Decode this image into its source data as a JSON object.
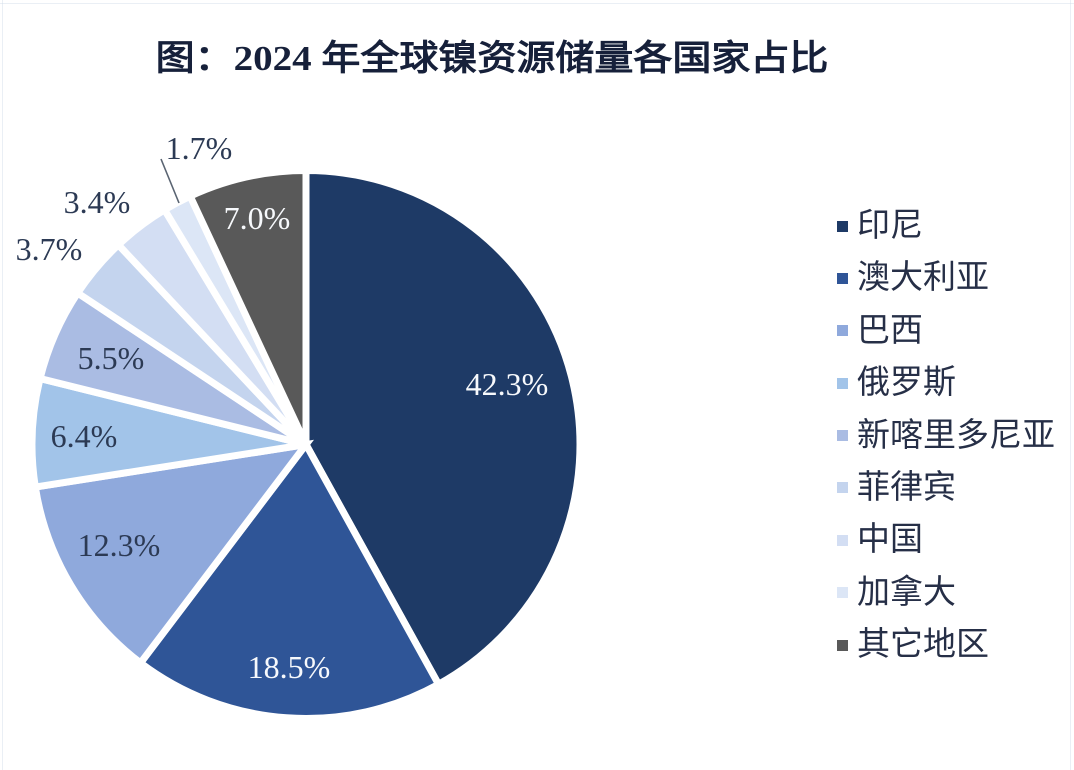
{
  "figure": {
    "background_color": "#ffffff"
  },
  "chart_data": {
    "type": "pie",
    "title": "图：2024 年全球镍资源储量各国家占比",
    "unit": "percent",
    "direction": "clockwise",
    "start_angle_deg": 0,
    "legend_position": "right",
    "categories": [
      "印尼",
      "澳大利亚",
      "巴西",
      "俄罗斯",
      "新喀里多尼亚",
      "菲律宾",
      "中国",
      "加拿大",
      "其它地区"
    ],
    "values": [
      42.3,
      18.5,
      12.3,
      6.4,
      5.5,
      3.7,
      3.4,
      1.7,
      7.0
    ],
    "labels": [
      "42.3%",
      "18.5%",
      "12.3%",
      "6.4%",
      "5.5%",
      "3.7%",
      "3.4%",
      "1.7%",
      "7.0%"
    ],
    "colors": [
      "#1e3a66",
      "#2f5597",
      "#8fa9dc",
      "#a2c4e9",
      "#aabce3",
      "#c4d4ee",
      "#d3def3",
      "#dce6f6",
      "#595959"
    ],
    "slice_border_color": "#ffffff",
    "title_color": "#16203a",
    "label_color_dark": "#2c3a54",
    "label_color_light": "#f7f9fc",
    "leader_line_color": "#5a6472",
    "legend_text_color": "#262f47"
  }
}
